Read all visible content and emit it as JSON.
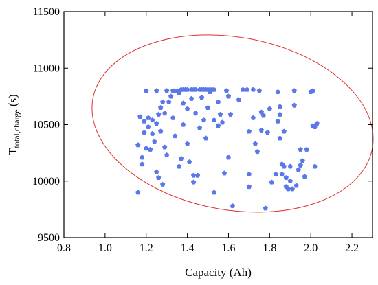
{
  "chart_data": {
    "type": "scatter",
    "title": "",
    "xlabel": "Capacity (Ah)",
    "ylabel_main": "T",
    "ylabel_sub": "total,charge",
    "ylabel_unit": " (s)",
    "xlim": [
      0.8,
      2.3
    ],
    "ylim": [
      9500,
      11500
    ],
    "xticks": [
      "0.8",
      "1.0",
      "1.2",
      "1.4",
      "1.6",
      "1.8",
      "2.0",
      "2.2"
    ],
    "yticks": [
      "9500",
      "10000",
      "10500",
      "11000",
      "11500"
    ],
    "grid": false,
    "marker_color": "#5b78e8",
    "ellipse_color": "#e03030",
    "ellipse": {
      "center": [
        1.62,
        10510
      ],
      "semi_axes": [
        0.69,
        765
      ],
      "rotation_deg": -10
    },
    "points": [
      [
        1.16,
        9900
      ],
      [
        1.16,
        10320
      ],
      [
        1.17,
        10570
      ],
      [
        1.18,
        10210
      ],
      [
        1.18,
        10150
      ],
      [
        1.19,
        10430
      ],
      [
        1.19,
        10530
      ],
      [
        1.2,
        10290
      ],
      [
        1.2,
        10800
      ],
      [
        1.21,
        10560
      ],
      [
        1.21,
        10480
      ],
      [
        1.22,
        10280
      ],
      [
        1.23,
        10420
      ],
      [
        1.23,
        10540
      ],
      [
        1.24,
        10350
      ],
      [
        1.25,
        10800
      ],
      [
        1.25,
        10510
      ],
      [
        1.25,
        10080
      ],
      [
        1.26,
        10030
      ],
      [
        1.26,
        10590
      ],
      [
        1.27,
        10650
      ],
      [
        1.27,
        10440
      ],
      [
        1.28,
        9970
      ],
      [
        1.28,
        10700
      ],
      [
        1.29,
        10600
      ],
      [
        1.29,
        10300
      ],
      [
        1.3,
        10800
      ],
      [
        1.3,
        10230
      ],
      [
        1.31,
        10700
      ],
      [
        1.32,
        10750
      ],
      [
        1.33,
        10800
      ],
      [
        1.33,
        10560
      ],
      [
        1.34,
        10400
      ],
      [
        1.35,
        10800
      ],
      [
        1.36,
        10780
      ],
      [
        1.36,
        10130
      ],
      [
        1.37,
        10200
      ],
      [
        1.37,
        10810
      ],
      [
        1.38,
        10500
      ],
      [
        1.38,
        10690
      ],
      [
        1.38,
        10810
      ],
      [
        1.39,
        10810
      ],
      [
        1.4,
        10330
      ],
      [
        1.4,
        10810
      ],
      [
        1.4,
        10640
      ],
      [
        1.41,
        10170
      ],
      [
        1.42,
        10810
      ],
      [
        1.42,
        10730
      ],
      [
        1.43,
        9990
      ],
      [
        1.43,
        10050
      ],
      [
        1.43,
        10810
      ],
      [
        1.44,
        10810
      ],
      [
        1.44,
        10600
      ],
      [
        1.45,
        10050
      ],
      [
        1.46,
        10810
      ],
      [
        1.46,
        10470
      ],
      [
        1.47,
        10810
      ],
      [
        1.47,
        10740
      ],
      [
        1.48,
        10810
      ],
      [
        1.48,
        10540
      ],
      [
        1.49,
        10810
      ],
      [
        1.49,
        10380
      ],
      [
        1.5,
        10810
      ],
      [
        1.5,
        10650
      ],
      [
        1.51,
        10810
      ],
      [
        1.51,
        10790
      ],
      [
        1.52,
        10810
      ],
      [
        1.52,
        10810
      ],
      [
        1.53,
        10810
      ],
      [
        1.53,
        10540
      ],
      [
        1.53,
        9900
      ],
      [
        1.55,
        10700
      ],
      [
        1.55,
        10490
      ],
      [
        1.56,
        10590
      ],
      [
        1.57,
        10520
      ],
      [
        1.58,
        10070
      ],
      [
        1.59,
        10800
      ],
      [
        1.6,
        10750
      ],
      [
        1.6,
        10210
      ],
      [
        1.61,
        10590
      ],
      [
        1.62,
        9780
      ],
      [
        1.65,
        10720
      ],
      [
        1.67,
        10810
      ],
      [
        1.69,
        10810
      ],
      [
        1.7,
        10440
      ],
      [
        1.7,
        10060
      ],
      [
        1.7,
        9950
      ],
      [
        1.72,
        10810
      ],
      [
        1.72,
        10560
      ],
      [
        1.73,
        10330
      ],
      [
        1.74,
        10260
      ],
      [
        1.75,
        10800
      ],
      [
        1.76,
        10450
      ],
      [
        1.76,
        10610
      ],
      [
        1.77,
        10580
      ],
      [
        1.78,
        9760
      ],
      [
        1.79,
        10430
      ],
      [
        1.8,
        10640
      ],
      [
        1.81,
        9990
      ],
      [
        1.83,
        10060
      ],
      [
        1.84,
        10790
      ],
      [
        1.84,
        10530
      ],
      [
        1.85,
        10660
      ],
      [
        1.85,
        10590
      ],
      [
        1.85,
        10380
      ],
      [
        1.86,
        10060
      ],
      [
        1.86,
        10150
      ],
      [
        1.87,
        10440
      ],
      [
        1.87,
        10130
      ],
      [
        1.88,
        9950
      ],
      [
        1.88,
        10030
      ],
      [
        1.89,
        9930
      ],
      [
        1.9,
        10130
      ],
      [
        1.9,
        10000
      ],
      [
        1.91,
        9930
      ],
      [
        1.92,
        10670
      ],
      [
        1.92,
        10800
      ],
      [
        1.93,
        9960
      ],
      [
        1.94,
        10100
      ],
      [
        1.95,
        10140
      ],
      [
        1.95,
        10280
      ],
      [
        1.96,
        10180
      ],
      [
        1.97,
        10040
      ],
      [
        1.98,
        10280
      ],
      [
        2.0,
        10790
      ],
      [
        2.01,
        10800
      ],
      [
        2.01,
        10490
      ],
      [
        2.02,
        10130
      ],
      [
        2.02,
        10480
      ],
      [
        2.03,
        10510
      ]
    ]
  }
}
